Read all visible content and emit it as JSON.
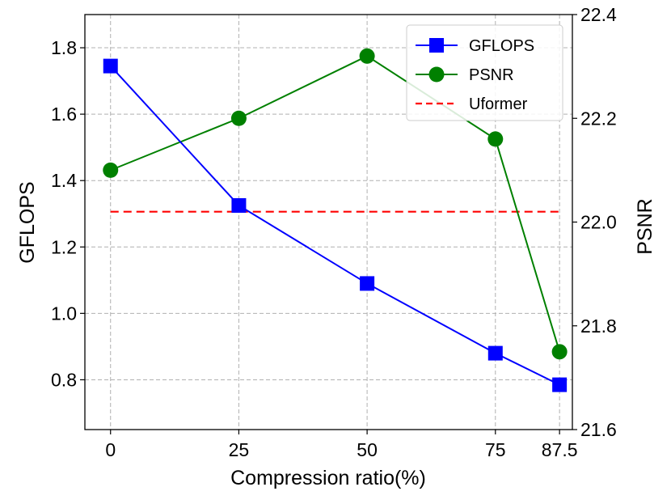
{
  "chart_data": {
    "type": "line",
    "x": [
      0,
      25,
      50,
      75,
      87.5
    ],
    "xtick_labels": [
      "0",
      "25",
      "50",
      "75",
      "87.5"
    ],
    "xlabel": "Compression ratio(%)",
    "xlim": [
      -5,
      90
    ],
    "left_axis": {
      "label": "GFLOPS",
      "ylim": [
        0.65,
        1.9
      ],
      "ticks": [
        0.8,
        1.0,
        1.2,
        1.4,
        1.6,
        1.8
      ],
      "tick_labels": [
        "0.8",
        "1.0",
        "1.2",
        "1.4",
        "1.6",
        "1.8"
      ]
    },
    "right_axis": {
      "label": "PSNR",
      "ylim": [
        21.6,
        22.4
      ],
      "ticks": [
        21.6,
        21.8,
        22.0,
        22.2,
        22.4
      ],
      "tick_labels": [
        "21.6",
        "21.8",
        "22.0",
        "22.2",
        "22.4"
      ]
    },
    "series": [
      {
        "name": "GFLOPS",
        "axis": "left",
        "color": "#0000ff",
        "marker": "square",
        "style": "solid",
        "values": [
          1.745,
          1.325,
          1.09,
          0.88,
          0.785
        ]
      },
      {
        "name": "PSNR",
        "axis": "right",
        "color": "#008000",
        "marker": "circle",
        "style": "solid",
        "values": [
          22.1,
          22.2,
          22.32,
          22.16,
          21.75
        ]
      },
      {
        "name": "Uformer",
        "axis": "right",
        "color": "#ff0000",
        "marker": "none",
        "style": "dashed",
        "values": [
          22.02,
          22.02,
          22.02,
          22.02,
          22.02
        ]
      }
    ],
    "legend_position": "top-right",
    "grid": true
  }
}
